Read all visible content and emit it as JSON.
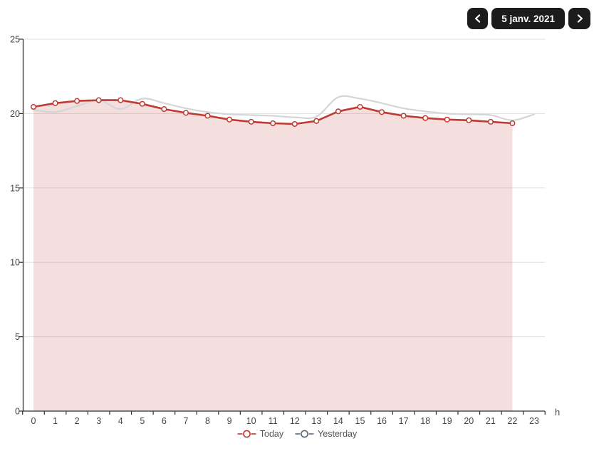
{
  "date_nav": {
    "date_label": "5 janv. 2021"
  },
  "chart_data": {
    "type": "line",
    "title": "",
    "x_unit_label": "h",
    "x": [
      0,
      1,
      2,
      3,
      4,
      5,
      6,
      7,
      8,
      9,
      10,
      11,
      12,
      13,
      14,
      15,
      16,
      17,
      18,
      19,
      20,
      21,
      22,
      23
    ],
    "ylim": [
      0,
      25
    ],
    "yticks": [
      0,
      5,
      10,
      15,
      20,
      25
    ],
    "grid": "horizontal",
    "legend_position": "bottom-center",
    "series": [
      {
        "name": "Today",
        "line_style": "straight",
        "color": "#bf3a32",
        "area_fill": "rgba(191,58,50,0.16)",
        "markers": true,
        "legend_marker_color": "#bf3a32",
        "values": [
          20.45,
          20.7,
          20.85,
          20.9,
          20.9,
          20.65,
          20.3,
          20.05,
          19.85,
          19.6,
          19.45,
          19.35,
          19.3,
          19.5,
          20.15,
          20.45,
          20.1,
          19.85,
          19.7,
          19.6,
          19.55,
          19.45,
          19.35
        ]
      },
      {
        "name": "Yesterday",
        "line_style": "spline",
        "color": "#d3d6d9",
        "area_fill": null,
        "markers": false,
        "legend_marker_color": "#5c6a78",
        "values": [
          20.25,
          20.1,
          20.5,
          20.9,
          20.3,
          21.0,
          20.7,
          20.35,
          20.1,
          19.95,
          19.9,
          19.85,
          19.75,
          19.8,
          21.1,
          21.0,
          20.7,
          20.35,
          20.15,
          20.0,
          19.95,
          19.9,
          19.55,
          19.95
        ]
      }
    ],
    "colors": {
      "axis": "#2f2f2f",
      "grid": "#e0e0e0",
      "tick_label": "#444444",
      "legend_text": "#555555",
      "nav_button_bg": "#1c1c1c"
    }
  }
}
